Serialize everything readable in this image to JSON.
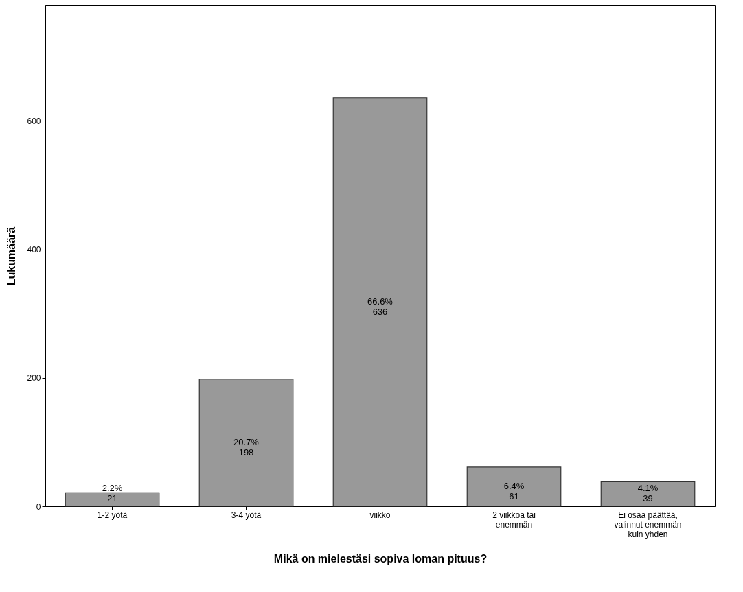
{
  "chart_data": {
    "type": "bar",
    "xlabel": "Mikä on mielestäsi sopiva loman pituus?",
    "ylabel": "Lukumäärä",
    "categories": [
      "1-2 yötä",
      "3-4 yötä",
      "viikko",
      "2 viikkoa tai enemmän",
      "Ei osaa päättää, valinnut enemmän kuin yhden"
    ],
    "values": [
      21,
      198,
      636,
      61,
      39
    ],
    "value_labels": [
      "2.2%\n21",
      "20.7%\n198",
      "66.6%\n636",
      "6.4%\n61",
      "4.1%\n39"
    ],
    "color": "#999999",
    "ylim": [
      0,
      780
    ],
    "yticks": [
      0,
      200,
      400,
      600
    ],
    "grid": false
  }
}
